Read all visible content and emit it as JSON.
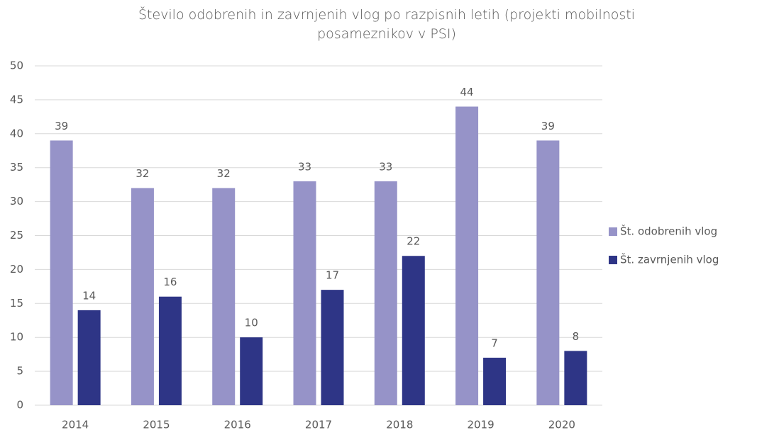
{
  "chart_data": {
    "type": "bar",
    "title": "Število odobrenih in zavrnjenih vlog po razpisnih letih (projekti mobilnosti posameznikov v PSI)",
    "categories": [
      "2014",
      "2015",
      "2016",
      "2017",
      "2018",
      "2019",
      "2020"
    ],
    "series": [
      {
        "name": "Št. odobrenih vlog",
        "color": "#9693c8",
        "values": [
          39,
          32,
          32,
          33,
          33,
          44,
          39
        ]
      },
      {
        "name": "Št. zavrnjenih vlog",
        "color": "#2e3586",
        "values": [
          14,
          16,
          10,
          17,
          22,
          7,
          8
        ]
      }
    ],
    "ylim": [
      0,
      50
    ],
    "yticks": [
      0,
      5,
      10,
      15,
      20,
      25,
      30,
      35,
      40,
      45,
      50
    ],
    "grid": true,
    "legend": "right"
  }
}
